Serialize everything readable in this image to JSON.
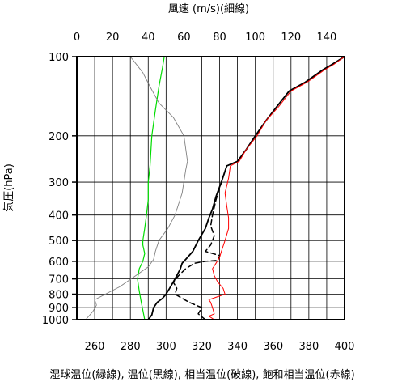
{
  "chart_data": {
    "type": "line",
    "top_axis_label": "風速 (m/s)(細線)",
    "ylabel": "気圧(hPa)",
    "xlabel": "湿球温位(緑線), 温位(黒線), 相当温位(破線), 飽和相当温位(赤線)",
    "y_scale": "log",
    "y_inverted": true,
    "ylim": [
      1000,
      100
    ],
    "y_ticks": [
      100,
      200,
      300,
      400,
      500,
      600,
      700,
      800,
      900,
      1000
    ],
    "x_bottom_range": [
      250,
      400
    ],
    "x_bottom_ticks": [
      260,
      280,
      300,
      320,
      340,
      360,
      380,
      400
    ],
    "x_top_range": [
      0,
      150
    ],
    "x_top_ticks": [
      0,
      20,
      40,
      60,
      80,
      100,
      120,
      140
    ],
    "grid": true,
    "series": [
      {
        "axis": "bottom",
        "color": "#00dd00",
        "width": 1.2,
        "dash": "",
        "points": [
          [
            288,
            1000
          ],
          [
            287,
            920
          ],
          [
            286,
            850
          ],
          [
            285,
            780
          ],
          [
            284,
            700
          ],
          [
            285,
            640
          ],
          [
            287,
            600
          ],
          [
            288,
            560
          ],
          [
            287,
            520
          ],
          [
            287,
            500
          ],
          [
            288,
            450
          ],
          [
            289,
            400
          ],
          [
            290,
            350
          ],
          [
            290,
            300
          ],
          [
            291,
            260
          ],
          [
            292,
            200
          ],
          [
            294,
            160
          ],
          [
            296,
            130
          ],
          [
            298,
            110
          ],
          [
            299,
            100
          ]
        ]
      },
      {
        "axis": "top",
        "color": "#808080",
        "width": 0.9,
        "dash": "",
        "points": [
          [
            5,
            1000
          ],
          [
            9,
            930
          ],
          [
            11,
            880
          ],
          [
            10,
            840
          ],
          [
            16,
            800
          ],
          [
            24,
            750
          ],
          [
            33,
            680
          ],
          [
            40,
            630
          ],
          [
            43,
            590
          ],
          [
            44,
            550
          ],
          [
            46,
            500
          ],
          [
            51,
            450
          ],
          [
            55,
            400
          ],
          [
            59,
            330
          ],
          [
            61,
            270
          ],
          [
            62,
            250
          ],
          [
            60,
            200
          ],
          [
            54,
            170
          ],
          [
            46,
            150
          ],
          [
            41,
            130
          ],
          [
            37,
            115
          ],
          [
            30,
            100
          ]
        ]
      },
      {
        "axis": "bottom",
        "color": "#000000",
        "width": 1.8,
        "dash": "",
        "points": [
          [
            290,
            1000
          ],
          [
            291,
            980
          ],
          [
            292,
            960
          ],
          [
            293,
            900
          ],
          [
            295,
            860
          ],
          [
            298,
            830
          ],
          [
            300,
            800
          ],
          [
            302,
            760
          ],
          [
            304,
            720
          ],
          [
            306,
            680
          ],
          [
            308,
            640
          ],
          [
            309,
            610
          ],
          [
            311,
            590
          ],
          [
            315,
            550
          ],
          [
            318,
            500
          ],
          [
            322,
            450
          ],
          [
            324,
            410
          ],
          [
            326,
            380
          ],
          [
            328,
            340
          ],
          [
            331,
            300
          ],
          [
            334,
            260
          ],
          [
            340,
            250
          ],
          [
            345,
            225
          ],
          [
            350,
            200
          ],
          [
            356,
            175
          ],
          [
            362,
            155
          ],
          [
            369,
            135
          ],
          [
            378,
            125
          ],
          [
            388,
            112
          ],
          [
            393,
            107
          ],
          [
            400,
            100
          ]
        ]
      },
      {
        "axis": "bottom",
        "color": "#000000",
        "width": 1.5,
        "dash": "6,4",
        "points": [
          [
            322,
            1000
          ],
          [
            318,
            950
          ],
          [
            320,
            900
          ],
          [
            313,
            860
          ],
          [
            305,
            800
          ],
          [
            306,
            760
          ],
          [
            304,
            720
          ],
          [
            307,
            680
          ],
          [
            311,
            640
          ],
          [
            316,
            610
          ],
          [
            322,
            600
          ],
          [
            329,
            595
          ],
          [
            330,
            570
          ],
          [
            322,
            550
          ],
          [
            325,
            520
          ],
          [
            327,
            480
          ],
          [
            325,
            440
          ],
          [
            326,
            400
          ],
          [
            328,
            350
          ],
          [
            331,
            300
          ],
          [
            334,
            260
          ],
          [
            340,
            250
          ],
          [
            345,
            225
          ],
          [
            350,
            200
          ],
          [
            356,
            175
          ],
          [
            362,
            155
          ],
          [
            369,
            135
          ],
          [
            378,
            125
          ],
          [
            388,
            112
          ],
          [
            393,
            107
          ],
          [
            400,
            100
          ]
        ]
      },
      {
        "axis": "bottom",
        "color": "#ff0000",
        "width": 1.0,
        "dash": "",
        "points": [
          [
            327,
            1000
          ],
          [
            324,
            970
          ],
          [
            327,
            950
          ],
          [
            326,
            900
          ],
          [
            325,
            860
          ],
          [
            324,
            840
          ],
          [
            333,
            800
          ],
          [
            332,
            760
          ],
          [
            329,
            720
          ],
          [
            327,
            680
          ],
          [
            326,
            640
          ],
          [
            328,
            610
          ],
          [
            330,
            580
          ],
          [
            331,
            550
          ],
          [
            333,
            500
          ],
          [
            335,
            450
          ],
          [
            335,
            410
          ],
          [
            334,
            370
          ],
          [
            333,
            330
          ],
          [
            335,
            290
          ],
          [
            336,
            260
          ],
          [
            341,
            250
          ],
          [
            345,
            225
          ],
          [
            351,
            200
          ],
          [
            356,
            175
          ],
          [
            363,
            155
          ],
          [
            370,
            135
          ],
          [
            379,
            125
          ],
          [
            389,
            112
          ],
          [
            394,
            107
          ],
          [
            400,
            100
          ]
        ]
      }
    ]
  }
}
